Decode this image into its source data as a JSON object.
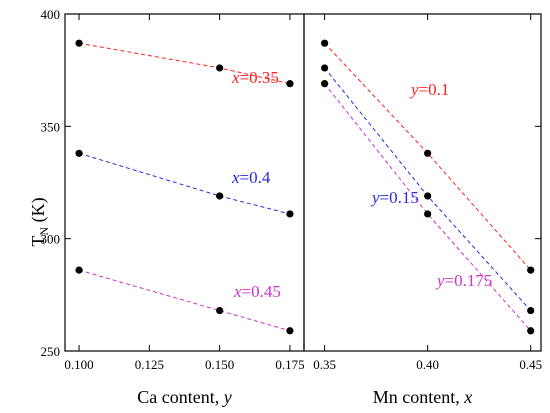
{
  "chart_data": {
    "type": "scatter",
    "ylabel": "T",
    "ylabel_sub": "N",
    "ylabel_unit": " (K)",
    "ylim": [
      250,
      400
    ],
    "yticks": [
      250,
      300,
      350,
      400
    ],
    "panels": [
      {
        "id": "left",
        "xlabel": "Ca content, ",
        "xlabel_var": "y",
        "xlim": [
          0.095,
          0.18
        ],
        "xticks": [
          "0.100",
          "0.125",
          "0.150",
          "0.175"
        ],
        "series": [
          {
            "label_var": "x",
            "label_value": "=0.35",
            "color": "#ff2020",
            "x": [
              0.1,
              0.15,
              0.175
            ],
            "y": [
              387,
              376,
              369
            ]
          },
          {
            "label_var": "x",
            "label_value": "=0.4",
            "color": "#2a2ad8",
            "x": [
              0.1,
              0.15,
              0.175
            ],
            "y": [
              338,
              319,
              311
            ]
          },
          {
            "label_var": "x",
            "label_value": "=0.45",
            "color": "#cc33cc",
            "x": [
              0.1,
              0.15,
              0.175
            ],
            "y": [
              286,
              268,
              259
            ]
          }
        ]
      },
      {
        "id": "right",
        "xlabel": "Mn content, ",
        "xlabel_var": "x",
        "xlim": [
          0.34,
          0.455
        ],
        "xticks": [
          "0.35",
          "0.40",
          "0.45"
        ],
        "series": [
          {
            "label_var": "y",
            "label_value": "=0.1",
            "color": "#ff2020",
            "x": [
              0.35,
              0.4,
              0.45
            ],
            "y": [
              387,
              338,
              286
            ]
          },
          {
            "label_var": "y",
            "label_value": "=0.15",
            "color": "#2a2ad8",
            "x": [
              0.35,
              0.4,
              0.45
            ],
            "y": [
              376,
              319,
              268
            ]
          },
          {
            "label_var": "y",
            "label_value": "=0.175",
            "color": "#cc33cc",
            "x": [
              0.35,
              0.4,
              0.45
            ],
            "y": [
              369,
              311,
              259
            ]
          }
        ]
      }
    ]
  }
}
